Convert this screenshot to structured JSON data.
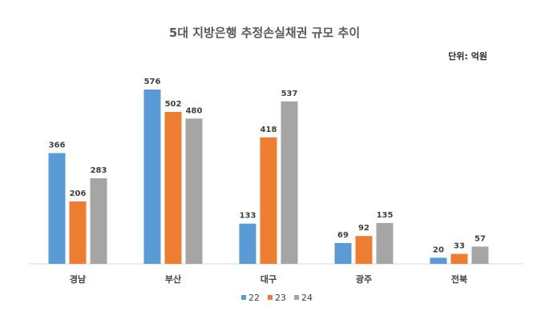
{
  "chart_data": {
    "type": "bar",
    "title": "5대 지방은행 추정손실채권 규모 추이",
    "unit_label": "단위: 억원",
    "categories": [
      "경남",
      "부산",
      "대구",
      "광주",
      "전북"
    ],
    "series": [
      {
        "name": "22",
        "color": "#5B9BD5",
        "values": [
          366,
          576,
          133,
          69,
          20
        ]
      },
      {
        "name": "23",
        "color": "#ED7D31",
        "values": [
          206,
          502,
          418,
          92,
          33
        ]
      },
      {
        "name": "24",
        "color": "#A5A5A5",
        "values": [
          283,
          480,
          537,
          135,
          57
        ]
      }
    ],
    "ylim": [
      0,
      600
    ],
    "grid": false,
    "legend_position": "bottom"
  }
}
